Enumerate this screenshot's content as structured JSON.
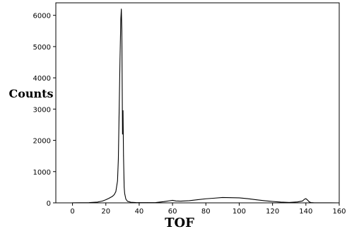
{
  "chart_data": {
    "type": "line",
    "title": "",
    "xlabel": "TOF",
    "ylabel": "Counts",
    "xlim": [
      -10,
      160
    ],
    "ylim": [
      0,
      6400
    ],
    "grid": false,
    "legend": "none",
    "line_color": "#000000",
    "xticks": [
      0,
      20,
      40,
      60,
      80,
      100,
      120,
      140,
      160
    ],
    "yticks": [
      0,
      1000,
      2000,
      3000,
      4000,
      5000,
      6000
    ],
    "series": [
      {
        "name": "",
        "x": [
          0,
          10,
          15,
          18,
          20,
          22,
          24,
          25,
          26,
          27,
          27.5,
          28,
          28.5,
          29,
          29.3,
          29.6,
          30,
          30.3,
          30.6,
          31,
          31.3,
          32,
          33,
          35,
          38,
          40,
          45,
          50,
          55,
          58,
          60,
          62,
          65,
          70,
          75,
          80,
          85,
          90,
          95,
          100,
          105,
          110,
          115,
          120,
          125,
          130,
          135,
          138,
          139,
          140,
          141,
          142,
          143,
          145,
          150,
          155,
          160
        ],
        "y": [
          3,
          8,
          25,
          60,
          100,
          150,
          210,
          260,
          360,
          700,
          1400,
          3000,
          4600,
          5900,
          6200,
          5500,
          2200,
          2950,
          1500,
          500,
          300,
          120,
          50,
          20,
          10,
          8,
          8,
          10,
          40,
          65,
          80,
          60,
          55,
          70,
          100,
          130,
          150,
          170,
          165,
          160,
          135,
          100,
          70,
          45,
          25,
          12,
          30,
          60,
          110,
          135,
          90,
          30,
          10,
          3,
          2,
          1,
          0
        ]
      }
    ]
  }
}
